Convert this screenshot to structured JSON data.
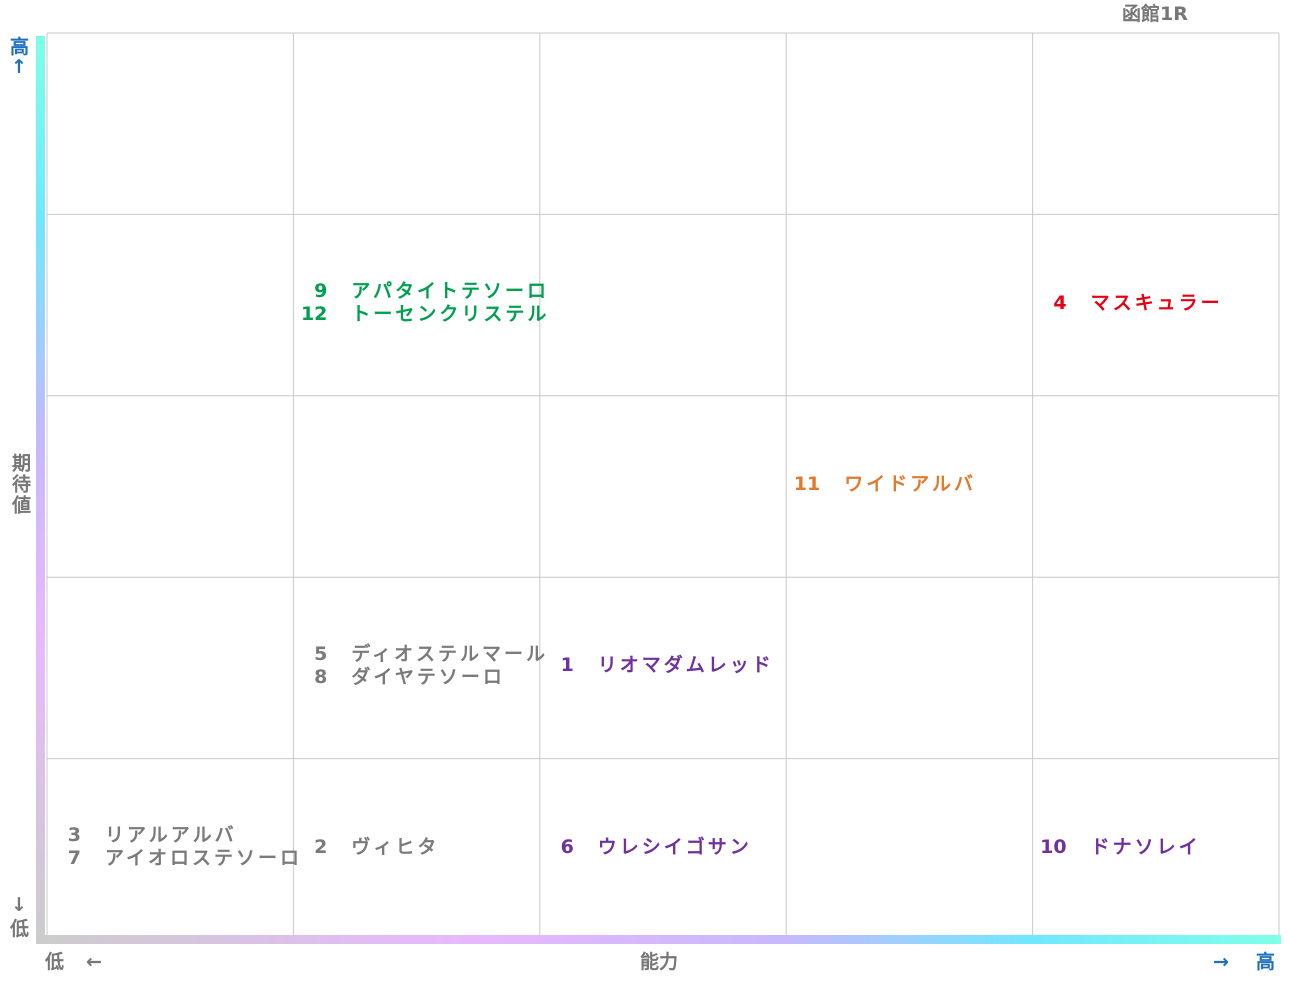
{
  "title": "函館1R",
  "y_axis": {
    "high": "高",
    "high_arrow": "↑",
    "label": "期待値",
    "low_arrow": "↓",
    "low": "低"
  },
  "x_axis": {
    "low": "低",
    "low_arrow": "←",
    "label": "能力",
    "high_arrow": "→",
    "high": "高"
  },
  "grid": {
    "columns": 5,
    "rows": 5
  },
  "groups": [
    {
      "row": 1,
      "col": 1,
      "color": "#00a050",
      "entries": [
        {
          "number": "9",
          "name": "アパタイトテソーロ"
        },
        {
          "number": "12",
          "name": "トーセンクリステル"
        }
      ]
    },
    {
      "row": 1,
      "col": 4,
      "color": "#e60012",
      "entries": [
        {
          "number": "4",
          "name": "マスキュラー"
        }
      ]
    },
    {
      "row": 2,
      "col": 3,
      "color": "#e07b2e",
      "entries": [
        {
          "number": "11",
          "name": "ワイドアルバ"
        }
      ]
    },
    {
      "row": 3,
      "col": 1,
      "color": "#7a7a7a",
      "entries": [
        {
          "number": "5",
          "name": "ディオステルマール"
        },
        {
          "number": "8",
          "name": "ダイヤテソーロ"
        }
      ]
    },
    {
      "row": 3,
      "col": 2,
      "color": "#7030a0",
      "entries": [
        {
          "number": "1",
          "name": "リオマダムレッド"
        }
      ]
    },
    {
      "row": 4,
      "col": 0,
      "color": "#7a7a7a",
      "entries": [
        {
          "number": "3",
          "name": "リアルアルバ"
        },
        {
          "number": "7",
          "name": "アイオロステソーロ"
        }
      ]
    },
    {
      "row": 4,
      "col": 1,
      "color": "#7a7a7a",
      "entries": [
        {
          "number": "2",
          "name": "ヴィヒタ"
        }
      ]
    },
    {
      "row": 4,
      "col": 2,
      "color": "#7030a0",
      "entries": [
        {
          "number": "6",
          "name": "ウレシイゴサン"
        }
      ]
    },
    {
      "row": 4,
      "col": 4,
      "color": "#7030a0",
      "entries": [
        {
          "number": "10",
          "name": "ドナソレイ"
        }
      ]
    }
  ]
}
